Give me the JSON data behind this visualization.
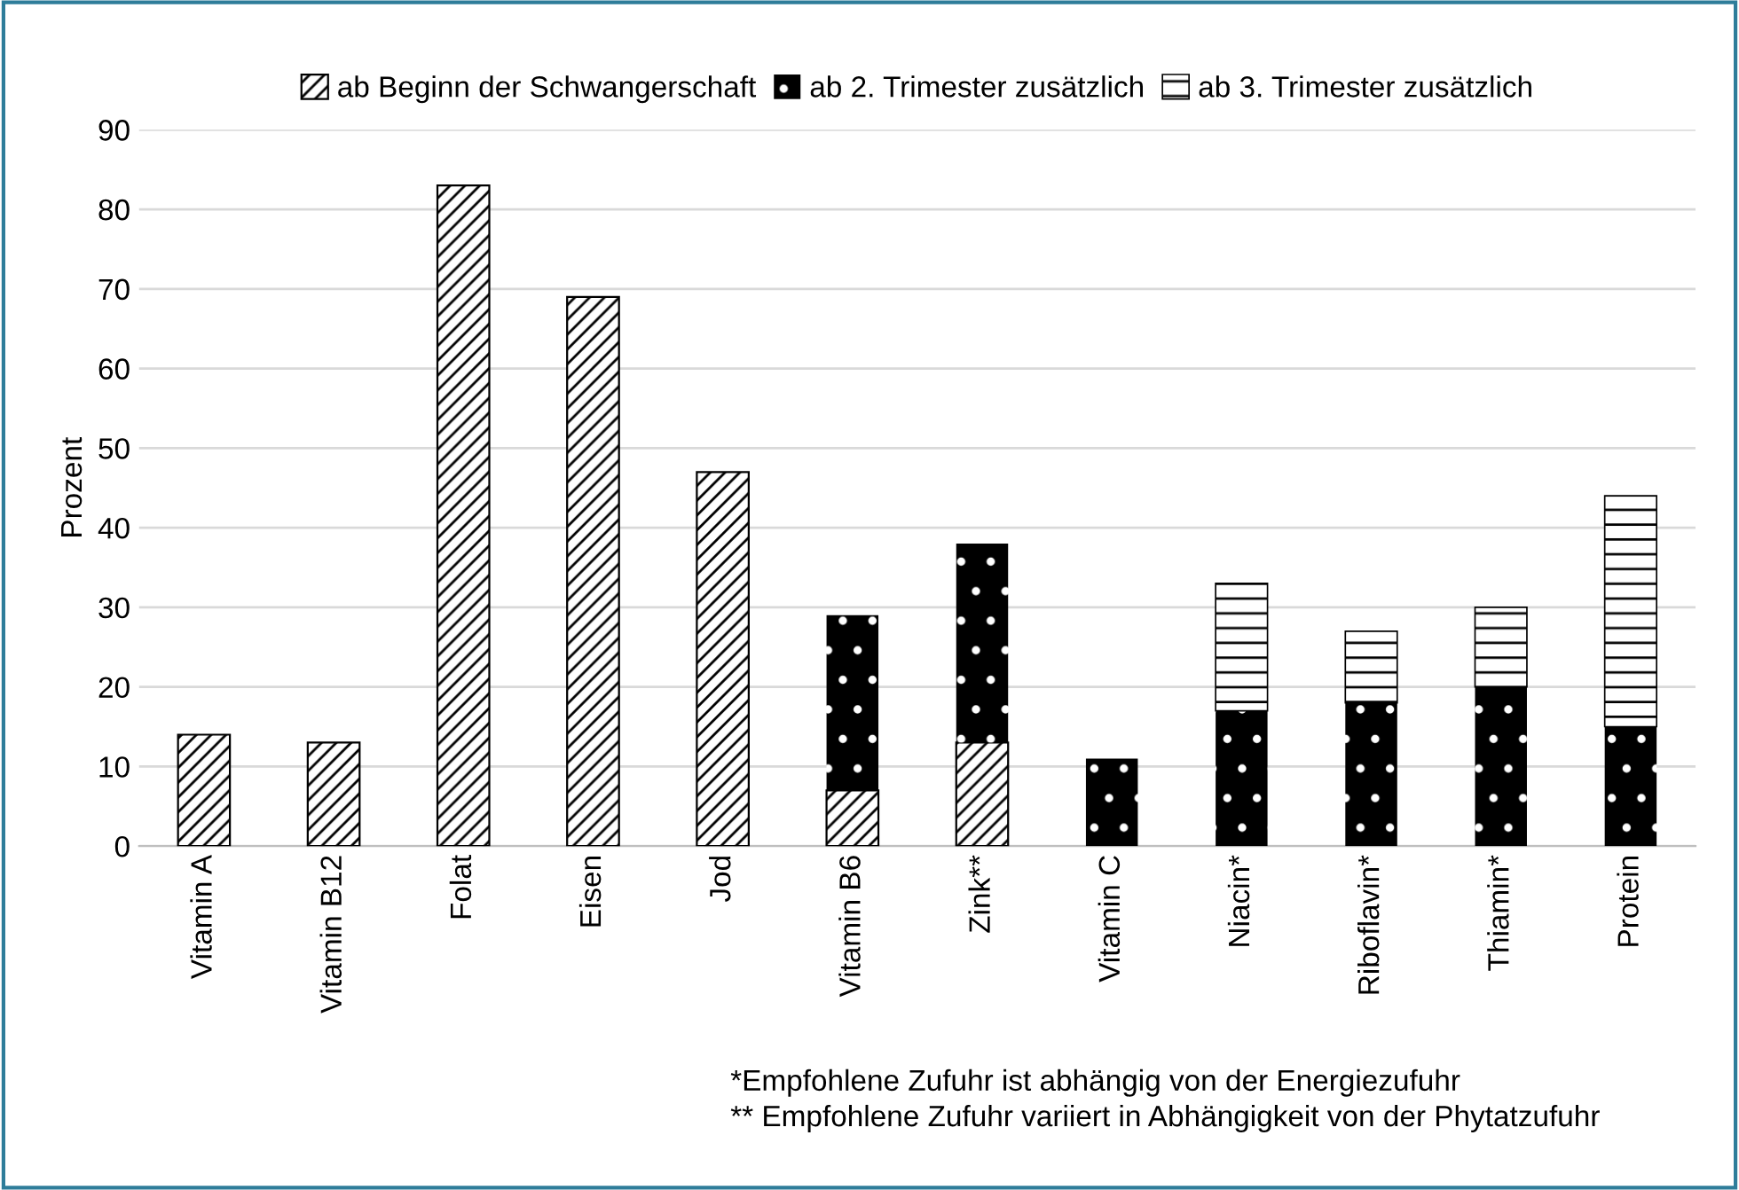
{
  "chart_data": {
    "type": "bar",
    "stacked": true,
    "ylabel": "Prozent",
    "categories": [
      "Vitamin A",
      "Vitamin B12",
      "Folat",
      "Eisen",
      "Jod",
      "Vitamin B6",
      "Zink**",
      "Vitamin C",
      "Niacin*",
      "Riboflavin*",
      "Thiamin*",
      "Protein"
    ],
    "series": [
      {
        "name": "ab Beginn der Schwangerschaft",
        "color": "#000000",
        "values": [
          14,
          13,
          83,
          69,
          47,
          7,
          13,
          null,
          null,
          null,
          null,
          null
        ]
      },
      {
        "name": "ab 2. Trimester zusätzlich",
        "color": "#000000",
        "values": [
          null,
          null,
          null,
          null,
          null,
          22,
          25,
          11,
          17,
          18,
          20,
          15
        ]
      },
      {
        "name": "ab 3. Trimester zusätzlich",
        "color": "#000000",
        "values": [
          null,
          null,
          null,
          null,
          null,
          null,
          null,
          null,
          16,
          9,
          10,
          29
        ]
      }
    ],
    "ylim": [
      0,
      90
    ],
    "yticks": [
      0,
      10,
      20,
      30,
      40,
      50,
      60,
      70,
      80,
      90
    ],
    "grid": "y",
    "legend": "top",
    "annotations": [
      "*Empfohlene Zufuhr ist abhängig von der Energiezufuhr",
      "** Empfohlene Zufuhr variiert in Abhängigkeit von der Phytatzufuhr"
    ]
  }
}
